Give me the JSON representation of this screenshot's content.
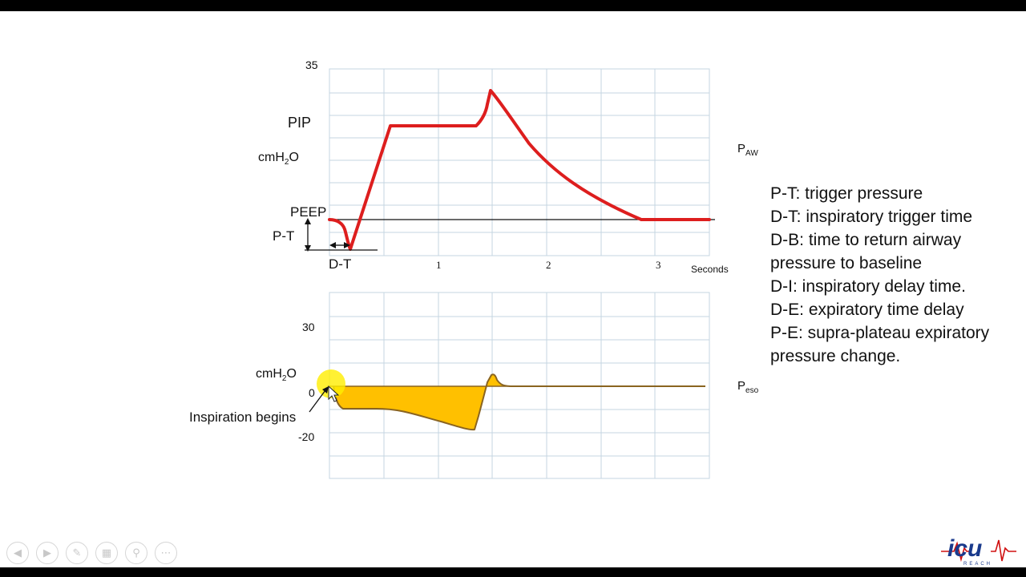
{
  "upper_panel": {
    "top_tick": "35",
    "pip_label": "PIP",
    "unit_prefix": "cmH",
    "unit_sub": "2",
    "unit_suffix": "O",
    "peep_label": "PEEP",
    "pt_label": "P-T",
    "dt_label": "D-T",
    "x_ticks": [
      "1",
      "2",
      "3"
    ],
    "x_axis_label": "Seconds",
    "series_label_main": "P",
    "series_label_sub": "AW",
    "line_color": "#dd1e1e"
  },
  "lower_panel": {
    "tick_30": "30",
    "tick_0": "0",
    "tick_neg20": "-20",
    "unit_prefix": "cmH",
    "unit_sub": "2",
    "unit_suffix": "O",
    "inspiration_label": "Inspiration begins",
    "series_label_main": "P",
    "series_label_sub": "eso",
    "fill_color": "#ffc000",
    "stroke_color": "#8a6420"
  },
  "legend_lines": [
    "P-T: trigger pressure",
    "D-T: inspiratory trigger time",
    "D-B: time to return airway",
    "pressure to baseline",
    "D-I: inspiratory delay time.",
    "D-E: expiratory time delay",
    "P-E: supra-plateau expiratory",
    "pressure change."
  ],
  "toolbar_icons": [
    "previous-icon",
    "next-icon",
    "pen-icon",
    "slides-icon",
    "zoom-icon",
    "more-icon"
  ],
  "logo": {
    "text": "icu",
    "subtext": "REACH",
    "color": "#1a3a8c",
    "accent": "#d01010"
  }
}
